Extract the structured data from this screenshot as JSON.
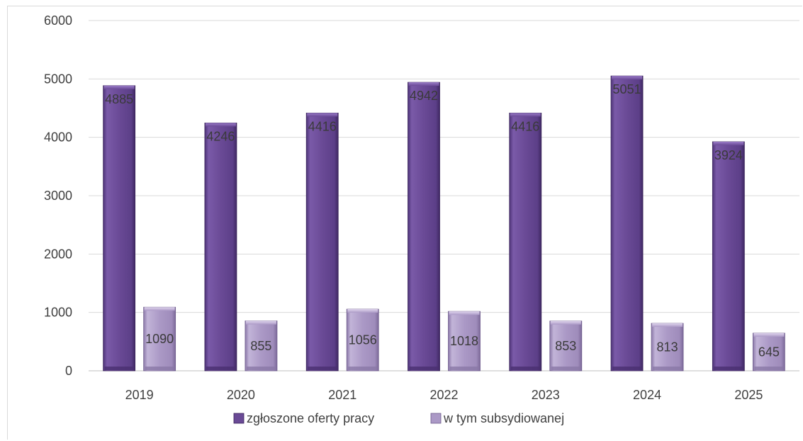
{
  "chart_data": {
    "type": "bar",
    "categories": [
      "2019",
      "2020",
      "2021",
      "2022",
      "2023",
      "2024",
      "2025"
    ],
    "series": [
      {
        "name": "zgłoszone oferty pracy",
        "values": [
          4885,
          4246,
          4416,
          4942,
          4416,
          5051,
          3924
        ],
        "color": "#6a4a96"
      },
      {
        "name": "w tym subsydiowanej",
        "values": [
          1090,
          855,
          1056,
          1018,
          853,
          813,
          645
        ],
        "color": "#a997c2"
      }
    ],
    "y_ticks": [
      "0",
      "1000",
      "2000",
      "3000",
      "4000",
      "5000",
      "6000"
    ],
    "ylim": [
      0,
      6000
    ],
    "grid": true,
    "legend_position": "bottom"
  }
}
